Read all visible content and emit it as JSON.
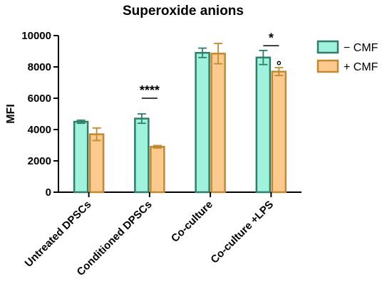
{
  "chart_data": {
    "type": "bar",
    "title": "Superoxide anions",
    "ylabel": "MFI",
    "xlabel": "",
    "ylim": [
      0,
      10000
    ],
    "yticks": [
      0,
      2000,
      4000,
      6000,
      8000,
      10000
    ],
    "categories": [
      "Untreated DPSCs",
      "Conditioned DPSCs",
      "Co-culture",
      "Co-culture +LPS"
    ],
    "series": [
      {
        "name": "− CMF",
        "values": [
          4500,
          4700,
          8900,
          8600
        ],
        "errors": [
          100,
          300,
          300,
          450
        ],
        "fill": "#9ff2dc",
        "stroke": "#2f7d6a"
      },
      {
        "name": "+ CMF",
        "values": [
          3700,
          2900,
          8850,
          7700
        ],
        "errors": [
          400,
          80,
          650,
          250
        ],
        "fill": "#fcc98f",
        "stroke": "#c18a30"
      }
    ],
    "annotations": [
      {
        "text": "****",
        "between": [
          1,
          1
        ],
        "y": 6000
      },
      {
        "text": "*",
        "between": [
          3,
          3
        ],
        "y": 9350
      },
      {
        "text": "°",
        "category": 3,
        "series": 1,
        "y": 8250
      }
    ],
    "legend_position": "top-right",
    "grid": false
  }
}
